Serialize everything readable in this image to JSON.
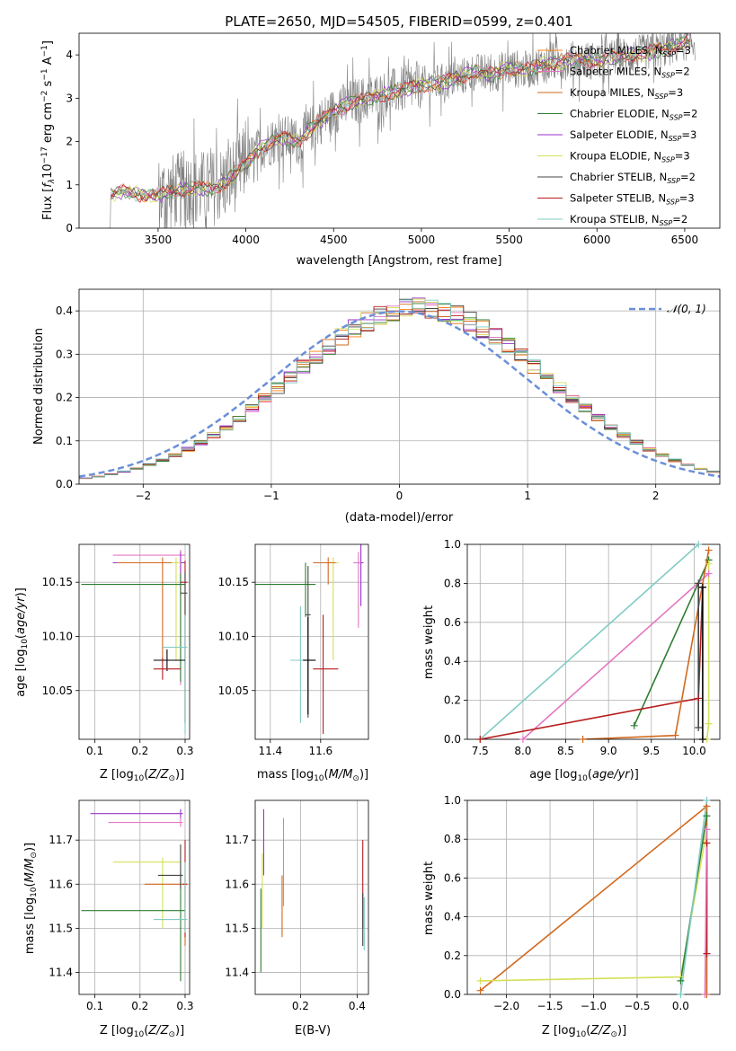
{
  "figure_title": "PLATE=2650, MJD=54505, FIBERID=0599, z=0.401",
  "colors": {
    "Chabrier MILES": "#000000",
    "Salpeter MILES": "#e377c2",
    "Kroupa MILES": "#d2691e",
    "Chabrier ELODIE": "#2e7d32",
    "Salpeter ELODIE": "#9932cc",
    "Kroupa ELODIE": "#d4e157",
    "Chabrier STELIB": "#444444",
    "Salpeter STELIB": "#b71c1c",
    "Kroupa STELIB": "#80cbc4",
    "normal": "#6a8fd8",
    "data": "#808080",
    "model": "#ff7f0e",
    "grid": "#b0b0b0"
  },
  "chart_data": [
    {
      "id": "spectrum",
      "type": "line",
      "title": "PLATE=2650, MJD=54505, FIBERID=0599, z=0.401",
      "xlabel": "wavelength [Angstrom, rest frame]",
      "ylabel": "Flux [f_λ 10^-17 erg cm^-2 s^-1 A^-1]",
      "xlim": [
        3050,
        6700
      ],
      "ylim": [
        0,
        4.5
      ],
      "xticks": [
        "3500",
        "4000",
        "4500",
        "5000",
        "5500",
        "6000",
        "6500"
      ],
      "yticks": [
        "0",
        "1",
        "2",
        "3",
        "4"
      ],
      "grid": false,
      "legend_position": "right",
      "legend": [
        "Chabrier MILES, N_SSP=3",
        "Salpeter MILES, N_SSP=2",
        "Kroupa MILES, N_SSP=3",
        "Chabrier ELODIE, N_SSP=2",
        "Salpeter ELODIE, N_SSP=3",
        "Kroupa ELODIE, N_SSP=3",
        "Chabrier STELIB, N_SSP=2",
        "Salpeter STELIB, N_SSP=3",
        "Kroupa STELIB, N_SSP=2"
      ],
      "continuum": {
        "x": [
          3210,
          3300,
          3400,
          3500,
          3600,
          3700,
          3800,
          3900,
          4000,
          4100,
          4200,
          4300,
          4400,
          4500,
          4600,
          4700,
          4800,
          4900,
          5000,
          5100,
          5200,
          5300,
          5400,
          5500,
          5600,
          5700,
          5800,
          5900,
          6000,
          6100,
          6200,
          6300,
          6400,
          6500
        ],
        "y": [
          0.72,
          0.85,
          0.78,
          0.76,
          0.85,
          0.95,
          0.9,
          1.1,
          1.5,
          1.9,
          2.1,
          2.0,
          2.4,
          2.7,
          2.9,
          3.0,
          3.1,
          3.2,
          3.3,
          3.35,
          3.45,
          3.6,
          3.55,
          3.7,
          3.65,
          3.8,
          3.85,
          3.9,
          3.85,
          3.95,
          4.0,
          4.05,
          4.15,
          4.3
        ]
      }
    },
    {
      "id": "residuals",
      "type": "bar",
      "xlabel": "(data-model)/error",
      "ylabel": "Normed distribution",
      "xlim": [
        -2.5,
        2.5
      ],
      "ylim": [
        0,
        0.45
      ],
      "xticks": [
        "−2",
        "−1",
        "0",
        "1",
        "2"
      ],
      "yticks": [
        "0.0",
        "0.1",
        "0.2",
        "0.3",
        "0.4"
      ],
      "grid": true,
      "legend_position": "top-right",
      "legend": [
        "𝒩(0, 1)"
      ],
      "bin_width": 0.1
    },
    {
      "id": "age-vs-Z",
      "type": "scatter",
      "xlabel": "Z [log10(Z/Z⊙)]",
      "ylabel": "age  [log10(age/yr)]",
      "xlim": [
        0.065,
        0.31
      ],
      "ylim": [
        10.005,
        10.185
      ],
      "xticks": [
        "0.1",
        "0.2",
        "0.3"
      ],
      "yticks": [
        "10.05",
        "10.10",
        "10.15"
      ],
      "grid": true,
      "series": [
        {
          "name": "Salpeter MILES",
          "x": 0.29,
          "y": 10.175,
          "xerr": [
            0.15,
            0.01
          ],
          "yerr": [
            0.12,
            0.005
          ]
        },
        {
          "name": "Salpeter ELODIE",
          "x": 0.29,
          "y": 10.168,
          "xerr": [
            0.15,
            0.01
          ],
          "yerr": [
            0.03,
            0.01
          ]
        },
        {
          "name": "Kroupa ELODIE",
          "x": 0.28,
          "y": 10.168,
          "xerr": [
            0.13,
            0.01
          ],
          "yerr": [
            0.09,
            0.005
          ]
        },
        {
          "name": "Kroupa MILES",
          "x": 0.25,
          "y": 10.168,
          "xerr": [
            0.1,
            0.02
          ],
          "yerr": [
            0.09,
            0.005
          ]
        },
        {
          "name": "Chabrier ELODIE",
          "x": 0.29,
          "y": 10.148,
          "xerr": [
            0.22,
            0.01
          ],
          "yerr": [
            0.09,
            0.01
          ]
        },
        {
          "name": "Salpeter STELIB",
          "x": 0.3,
          "y": 10.15,
          "xerr": [
            0.01,
            0.005
          ],
          "yerr": [
            0.13,
            0.02
          ]
        },
        {
          "name": "Chabrier STELIB",
          "x": 0.3,
          "y": 10.14,
          "xerr": [
            0.01,
            0.005
          ],
          "yerr": [
            0.12,
            0.02
          ]
        },
        {
          "name": "Kroupa STELIB",
          "x": 0.3,
          "y": 10.09,
          "xerr": [
            0.05,
            0.005
          ],
          "yerr": [
            0.08,
            0.03
          ]
        },
        {
          "name": "Chabrier MILES",
          "x": 0.26,
          "y": 10.078,
          "xerr": [
            0.03,
            0.04
          ],
          "yerr": [
            0.01,
            0.01
          ]
        },
        {
          "name": "Salpeter STELIB",
          "x": 0.25,
          "y": 10.07,
          "xerr": [
            0.02,
            0.04
          ],
          "yerr": [
            0.01,
            0.01
          ]
        }
      ]
    },
    {
      "id": "age-vs-mass",
      "type": "scatter",
      "xlabel": "mass [log10(M/M⊙)]",
      "ylabel": "",
      "xlim": [
        11.34,
        11.79
      ],
      "ylim": [
        10.005,
        10.185
      ],
      "xticks": [
        "11.4",
        "11.6"
      ],
      "yticks": [
        "10.05",
        "10.10",
        "10.15"
      ],
      "grid": true,
      "series": [
        {
          "name": "Salpeter ELODIE",
          "x": 11.76,
          "y": 10.168,
          "xerr": [
            0.01,
            0.01
          ],
          "yerr": [
            0.04,
            0.05
          ]
        },
        {
          "name": "Salpeter MILES",
          "x": 11.75,
          "y": 10.168,
          "xerr": [
            0.02,
            0.01
          ],
          "yerr": [
            0.06,
            0.01
          ]
        },
        {
          "name": "Kroupa ELODIE",
          "x": 11.65,
          "y": 10.168,
          "xerr": [
            0.03,
            0.02
          ],
          "yerr": [
            0.09,
            0.005
          ]
        },
        {
          "name": "Kroupa MILES",
          "x": 11.63,
          "y": 10.168,
          "xerr": [
            0.06,
            0.03
          ],
          "yerr": [
            0.02,
            0.005
          ]
        },
        {
          "name": "Chabrier ELODIE",
          "x": 11.54,
          "y": 10.148,
          "xerr": [
            0.2,
            0.04
          ],
          "yerr": [
            0.03,
            0.02
          ]
        },
        {
          "name": "Chabrier STELIB",
          "x": 11.55,
          "y": 10.12,
          "xerr": [
            0.01,
            0.01
          ],
          "yerr": [
            0.095,
            0.045
          ]
        },
        {
          "name": "Kroupa STELIB",
          "x": 11.52,
          "y": 10.078,
          "xerr": [
            0.04,
            0.06
          ],
          "yerr": [
            0.058,
            0.05
          ]
        },
        {
          "name": "Chabrier MILES",
          "x": 11.55,
          "y": 10.078,
          "xerr": [
            0.02,
            0.03
          ],
          "yerr": [
            0.05,
            0.04
          ]
        },
        {
          "name": "Salpeter STELIB",
          "x": 11.61,
          "y": 10.07,
          "xerr": [
            0.04,
            0.06
          ],
          "yerr": [
            0.06,
            0.05
          ]
        }
      ]
    },
    {
      "id": "mass-weight-vs-age",
      "type": "line",
      "xlabel": "age  [log10(age/yr)]",
      "ylabel": "mass weight",
      "xlim": [
        7.35,
        10.3
      ],
      "ylim": [
        0,
        1.0
      ],
      "xticks": [
        "7.5",
        "8.0",
        "8.5",
        "9.0",
        "9.5",
        "10.0"
      ],
      "yticks": [
        "0.0",
        "0.2",
        "0.4",
        "0.6",
        "0.8",
        "1.0"
      ],
      "grid": true,
      "series": [
        {
          "name": "Kroupa STELIB",
          "x": [
            7.5,
            10.05
          ],
          "y": [
            0.0,
            1.0
          ]
        },
        {
          "name": "Salpeter MILES",
          "x": [
            8.0,
            10.17
          ],
          "y": [
            0.0,
            0.85
          ]
        },
        {
          "name": "Chabrier ELODIE",
          "x": [
            9.3,
            10.17
          ],
          "y": [
            0.07,
            0.92
          ]
        },
        {
          "name": "Salpeter STELIB",
          "x": [
            7.5,
            10.05,
            10.1
          ],
          "y": [
            0.0,
            0.21,
            0.78
          ]
        },
        {
          "name": "Kroupa MILES",
          "x": [
            8.7,
            9.78,
            10.17
          ],
          "y": [
            0.0,
            0.02,
            0.97
          ]
        },
        {
          "name": "Kroupa ELODIE",
          "x": [
            10.15,
            10.17,
            10.17
          ],
          "y": [
            0.0,
            0.08,
            0.9
          ]
        },
        {
          "name": "Chabrier STELIB",
          "x": [
            10.05,
            10.05
          ],
          "y": [
            0.06,
            0.8
          ]
        },
        {
          "name": "Chabrier MILES",
          "x": [
            10.1,
            10.1
          ],
          "y": [
            0.0,
            0.78
          ]
        }
      ]
    },
    {
      "id": "mass-vs-Z",
      "type": "scatter",
      "xlabel": "Z [log10(Z/Z⊙)]",
      "ylabel": "mass [log10(M/M⊙)]",
      "xlim": [
        0.065,
        0.31
      ],
      "ylim": [
        11.35,
        11.79
      ],
      "xticks": [
        "0.1",
        "0.2",
        "0.3"
      ],
      "yticks": [
        "11.4",
        "11.5",
        "11.6",
        "11.7"
      ],
      "grid": true,
      "series": [
        {
          "name": "Salpeter ELODIE",
          "x": 0.29,
          "y": 11.76,
          "xerr": [
            0.2,
            0.005
          ],
          "yerr": [
            0.01,
            0.01
          ]
        },
        {
          "name": "Salpeter MILES",
          "x": 0.29,
          "y": 11.74,
          "xerr": [
            0.16,
            0.005
          ],
          "yerr": [
            0.01,
            0.01
          ]
        },
        {
          "name": "Kroupa ELODIE",
          "x": 0.25,
          "y": 11.65,
          "xerr": [
            0.11,
            0.04
          ],
          "yerr": [
            0.15,
            0.01
          ]
        },
        {
          "name": "Kroupa MILES",
          "x": 0.3,
          "y": 11.6,
          "xerr": [
            0.09,
            0.005
          ],
          "yerr": [
            0.14,
            0.02
          ]
        },
        {
          "name": "Salpeter STELIB",
          "x": 0.3,
          "y": 11.6,
          "xerr": [
            0.005,
            0.005
          ],
          "yerr": [
            0.12,
            0.1
          ]
        },
        {
          "name": "Chabrier ELODIE",
          "x": 0.29,
          "y": 11.54,
          "xerr": [
            0.22,
            0.01
          ],
          "yerr": [
            0.16,
            0.09
          ]
        },
        {
          "name": "Kroupa STELIB",
          "x": 0.3,
          "y": 11.52,
          "xerr": [
            0.07,
            0.005
          ],
          "yerr": [
            0.03,
            0.13
          ]
        },
        {
          "name": "Chabrier STELIB",
          "x": 0.29,
          "y": 11.62,
          "xerr": [
            0.05,
            0.005
          ],
          "yerr": [
            0.03,
            0.07
          ]
        }
      ]
    },
    {
      "id": "mass-vs-EBV",
      "type": "scatter",
      "xlabel": "E(B-V)",
      "ylabel": "",
      "xlim": [
        0.04,
        0.44
      ],
      "ylim": [
        11.35,
        11.79
      ],
      "xticks": [
        "0.2",
        "0.4"
      ],
      "yticks": [
        "11.4",
        "11.5",
        "11.6",
        "11.7"
      ],
      "grid": true,
      "series": [
        {
          "name": "Salpeter ELODIE",
          "x": 0.07,
          "y": 11.72,
          "xerr": [
            0.0,
            0.0
          ],
          "yerr": [
            0.1,
            0.05
          ]
        },
        {
          "name": "Kroupa ELODIE",
          "x": 0.065,
          "y": 11.6,
          "xerr": [
            0.0,
            0.0
          ],
          "yerr": [
            0.1,
            0.07
          ]
        },
        {
          "name": "Chabrier ELODIE",
          "x": 0.06,
          "y": 11.48,
          "xerr": [
            0.0,
            0.0
          ],
          "yerr": [
            0.08,
            0.11
          ]
        },
        {
          "name": "Salpeter MILES",
          "x": 0.14,
          "y": 11.65,
          "xerr": [
            0.0,
            0.0
          ],
          "yerr": [
            0.1,
            0.1
          ]
        },
        {
          "name": "Kroupa MILES",
          "x": 0.135,
          "y": 11.55,
          "xerr": [
            0.0,
            0.0
          ],
          "yerr": [
            0.07,
            0.07
          ]
        },
        {
          "name": "Salpeter STELIB",
          "x": 0.42,
          "y": 11.6,
          "xerr": [
            0.0,
            0.0
          ],
          "yerr": [
            0.1,
            0.1
          ]
        },
        {
          "name": "Kroupa STELIB",
          "x": 0.425,
          "y": 11.5,
          "xerr": [
            0.0,
            0.0
          ],
          "yerr": [
            0.05,
            0.07
          ]
        },
        {
          "name": "Chabrier STELIB",
          "x": 0.42,
          "y": 11.52,
          "xerr": [
            0.0,
            0.0
          ],
          "yerr": [
            0.06,
            0.06
          ]
        }
      ]
    },
    {
      "id": "mass-weight-vs-Z",
      "type": "line",
      "xlabel": "Z [log10(Z/Z⊙)]",
      "ylabel": "mass weight",
      "xlim": [
        -2.45,
        0.45
      ],
      "ylim": [
        0,
        1.0
      ],
      "xticks": [
        "−2.0",
        "−1.5",
        "−1.0",
        "−0.5",
        "0.0"
      ],
      "yticks": [
        "0.0",
        "0.2",
        "0.4",
        "0.6",
        "0.8",
        "1.0"
      ],
      "grid": true,
      "series": [
        {
          "name": "Kroupa MILES",
          "x": [
            -2.3,
            0.3,
            0.3
          ],
          "y": [
            0.02,
            0.97,
            0.0
          ]
        },
        {
          "name": "Kroupa ELODIE",
          "x": [
            -2.3,
            0.0,
            0.3
          ],
          "y": [
            0.07,
            0.09,
            0.85
          ]
        },
        {
          "name": "Chabrier ELODIE",
          "x": [
            0.0,
            0.3
          ],
          "y": [
            0.07,
            0.92
          ]
        },
        {
          "name": "Salpeter STELIB",
          "x": [
            0.3,
            0.3
          ],
          "y": [
            0.21,
            0.78
          ]
        },
        {
          "name": "Kroupa STELIB",
          "x": [
            0.0,
            0.3
          ],
          "y": [
            0.0,
            1.0
          ]
        },
        {
          "name": "Salpeter MILES",
          "x": [
            0.28,
            0.3
          ],
          "y": [
            0.0,
            0.85
          ]
        }
      ]
    }
  ]
}
